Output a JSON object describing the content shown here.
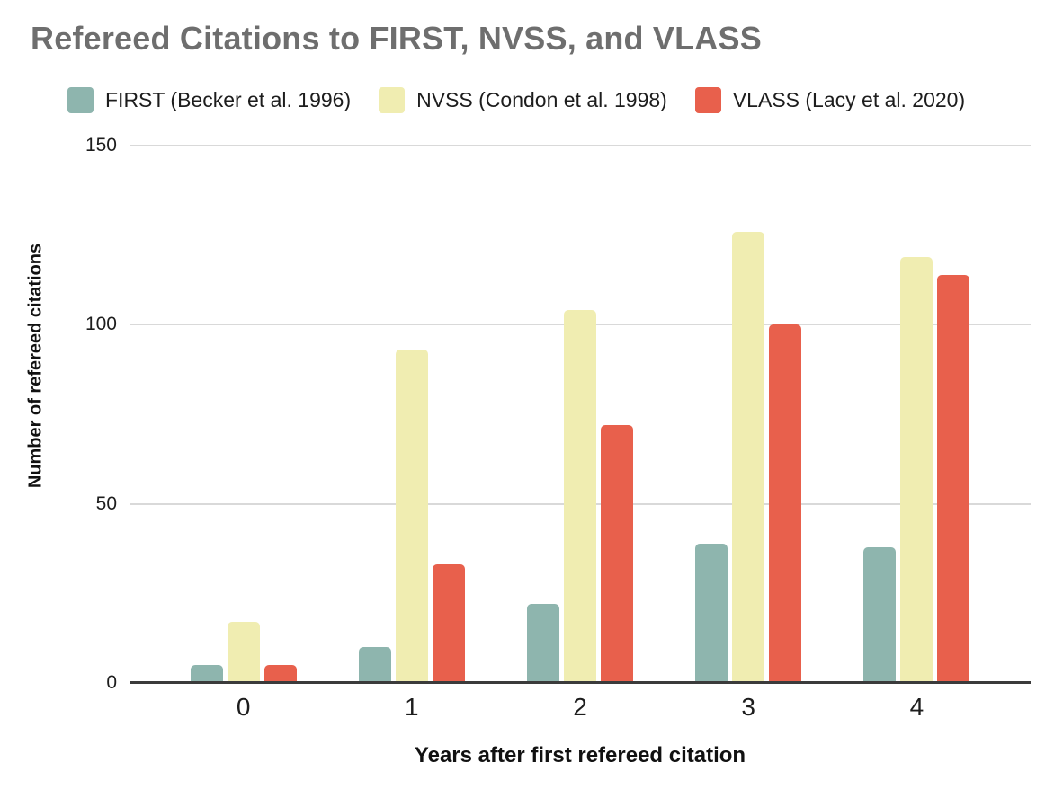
{
  "title": "Refereed Citations to FIRST, NVSS, and VLASS",
  "title_color": "#6e6e6e",
  "chart_data": {
    "type": "bar",
    "title": "Refereed Citations to FIRST, NVSS, and VLASS",
    "categories": [
      "0",
      "1",
      "2",
      "3",
      "4"
    ],
    "series": [
      {
        "name": "FIRST (Becker et al. 1996)",
        "color": "#8eb5ae",
        "values": [
          5,
          10,
          22,
          39,
          38
        ]
      },
      {
        "name": "NVSS (Condon et al. 1998)",
        "color": "#f0edb1",
        "values": [
          17,
          93,
          104,
          126,
          119
        ]
      },
      {
        "name": "VLASS (Lacy et al. 2020)",
        "color": "#e8604c",
        "values": [
          5,
          33,
          72,
          100,
          114
        ]
      }
    ],
    "xlabel": "Years after first refereed citation",
    "ylabel": "Number of refereed citations",
    "ylim": [
      0,
      150
    ],
    "yticks": [
      0,
      50,
      100,
      150
    ],
    "grid": true,
    "legend_position": "top",
    "gridline_color": "#d9d9d9",
    "baseline_color": "#3b3b3b"
  }
}
